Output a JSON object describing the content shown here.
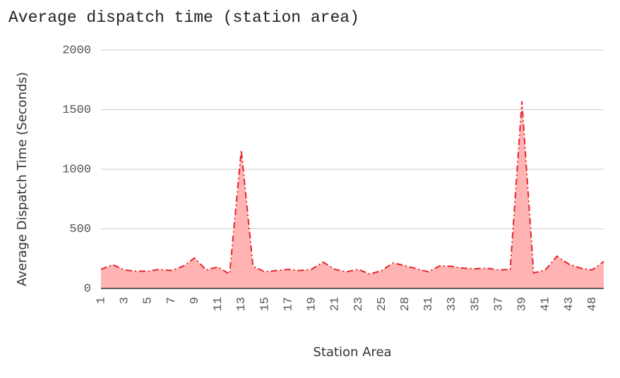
{
  "chart_data": {
    "type": "area",
    "title": "Average dispatch time (station area)",
    "xlabel": "Station Area",
    "ylabel": "Average Dispatch Time (Seconds)",
    "ylim": [
      0,
      2000
    ],
    "yticks": [
      0,
      500,
      1000,
      1500,
      2000
    ],
    "grid": true,
    "legend": "none",
    "colors": {
      "line": "#e8252b",
      "fill": "#ffb3b3",
      "grid": "#cccccc",
      "axis": "#333333"
    },
    "x_tick_labels": [
      "1",
      "3",
      "5",
      "7",
      "9",
      "11",
      "13",
      "15",
      "17",
      "19",
      "21",
      "23",
      "25",
      "28",
      "31",
      "33",
      "35",
      "37",
      "39",
      "41",
      "43",
      "48"
    ],
    "x": [
      "1",
      "2",
      "3",
      "4",
      "5",
      "6",
      "7",
      "8",
      "9",
      "10",
      "11",
      "12",
      "13",
      "14",
      "15",
      "16",
      "17",
      "18",
      "19",
      "20",
      "21",
      "22",
      "23",
      "24",
      "25",
      "26",
      "28",
      "29",
      "31",
      "32",
      "33",
      "34",
      "35",
      "36",
      "37",
      "38",
      "39",
      "40",
      "41",
      "42",
      "43",
      "44",
      "48",
      "49"
    ],
    "values": [
      160,
      200,
      155,
      145,
      145,
      160,
      150,
      185,
      255,
      155,
      180,
      120,
      1160,
      185,
      140,
      150,
      160,
      150,
      160,
      220,
      160,
      140,
      160,
      120,
      150,
      215,
      190,
      165,
      140,
      190,
      185,
      170,
      165,
      170,
      155,
      160,
      1570,
      130,
      155,
      270,
      205,
      170,
      155,
      225
    ]
  }
}
